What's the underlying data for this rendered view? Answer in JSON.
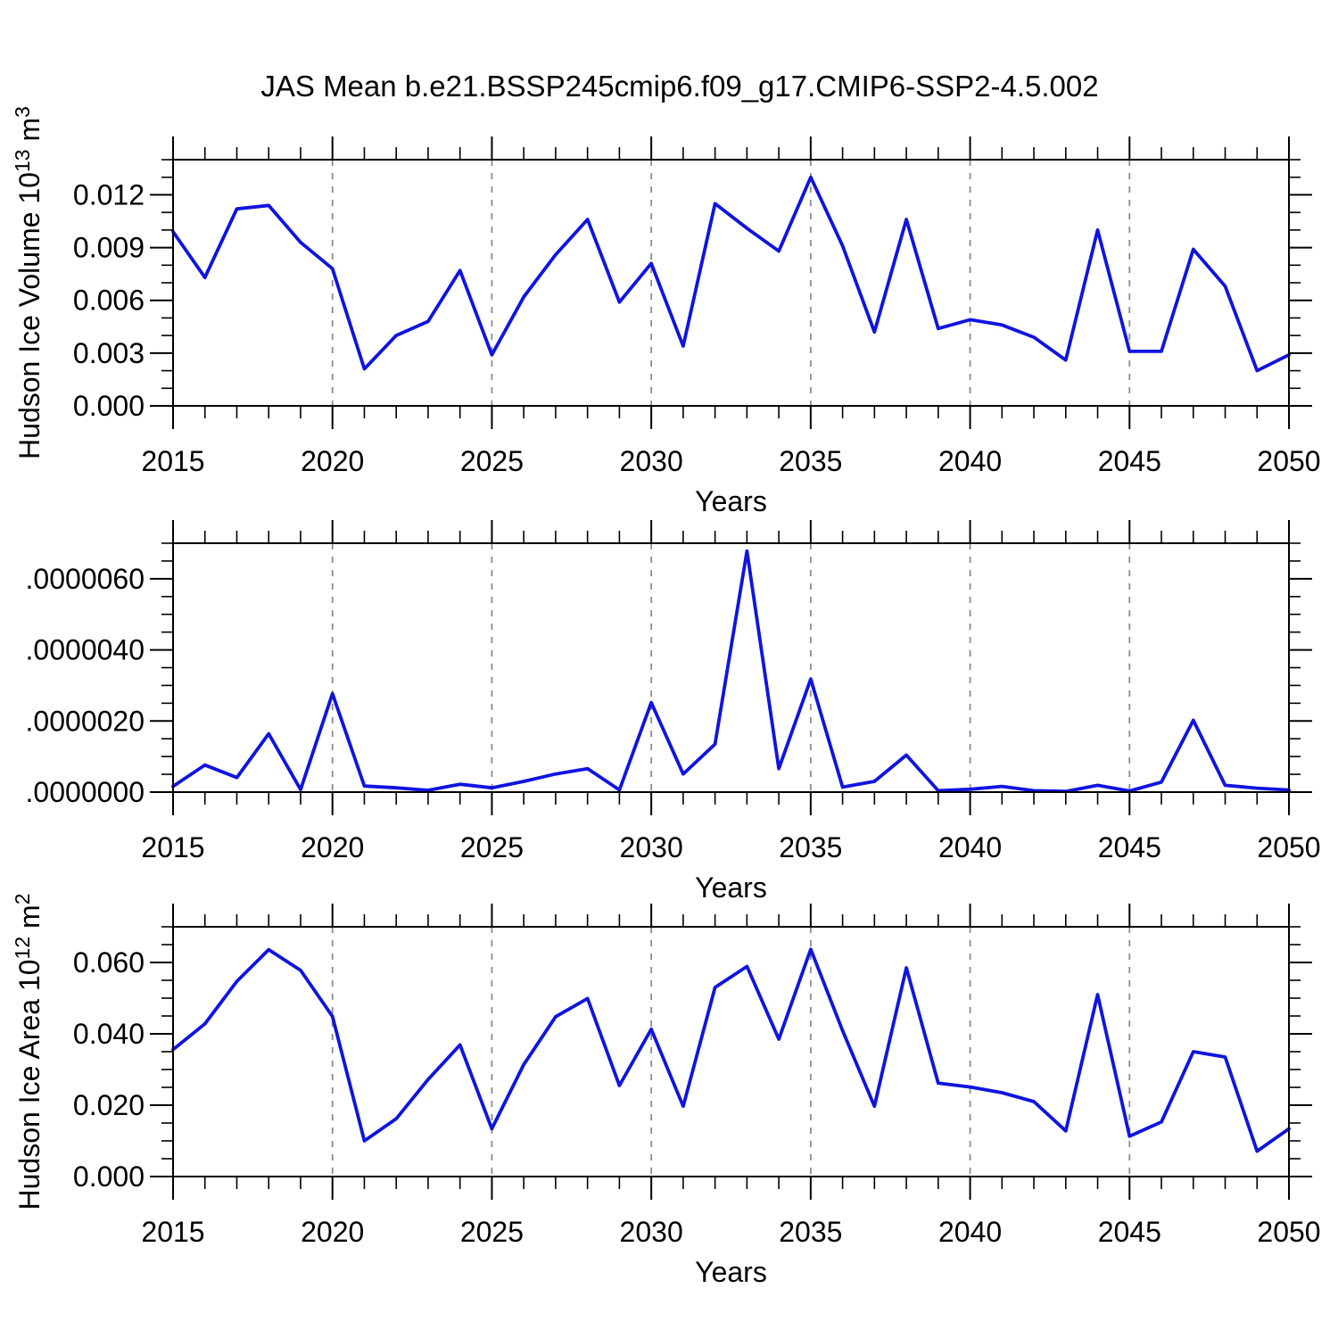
{
  "title": "JAS Mean b.e21.BSSP245cmip6.f09_g17.CMIP6-SSP2-4.5.002",
  "colors": {
    "line": "#0f14e0",
    "frame": "#000000",
    "grid": "#8c8c8c",
    "text": "#000000",
    "background": "#ffffff"
  },
  "years": [
    2015,
    2016,
    2017,
    2018,
    2019,
    2020,
    2021,
    2022,
    2023,
    2024,
    2025,
    2026,
    2027,
    2028,
    2029,
    2030,
    2031,
    2032,
    2033,
    2034,
    2035,
    2036,
    2037,
    2038,
    2039,
    2040,
    2041,
    2042,
    2043,
    2044,
    2045,
    2046,
    2047,
    2048,
    2049,
    2050
  ],
  "x_axis": {
    "range": [
      2015,
      2050
    ],
    "major_tick_years": [
      2015,
      2020,
      2025,
      2030,
      2035,
      2040,
      2045,
      2050
    ],
    "minor_step": 1,
    "gridline_years": [
      2020,
      2025,
      2030,
      2035,
      2040,
      2045
    ],
    "label": "Years"
  },
  "chart_data": [
    {
      "type": "line",
      "panel": "hudson-ice-volume",
      "ylabel": "Hudson Ice Volume 10^13 m^3",
      "ylabel_parts": [
        {
          "text": "Hudson Ice Volume 10"
        },
        {
          "text": "13",
          "sup": true
        },
        {
          "text": " m"
        },
        {
          "text": "3",
          "sup": true
        }
      ],
      "xlabel": "Years",
      "ylim": [
        0,
        0.014
      ],
      "y_major_ticks": [
        {
          "value": 0.0,
          "label": "0.000"
        },
        {
          "value": 0.003,
          "label": "0.003"
        },
        {
          "value": 0.006,
          "label": "0.006"
        },
        {
          "value": 0.009,
          "label": "0.009"
        },
        {
          "value": 0.012,
          "label": "0.012"
        }
      ],
      "y_minor_step": 0.001,
      "values": [
        0.0099,
        0.0073,
        0.0112,
        0.0114,
        0.0093,
        0.0078,
        0.0021,
        0.004,
        0.0048,
        0.0077,
        0.0029,
        0.0062,
        0.0086,
        0.0106,
        0.0059,
        0.0081,
        0.0034,
        0.0115,
        0.0101,
        0.0088,
        0.013,
        0.0091,
        0.0042,
        0.0106,
        0.0044,
        0.0049,
        0.0046,
        0.0039,
        0.0026,
        0.01,
        0.0031,
        0.0031,
        0.0089,
        0.0068,
        0.002,
        0.0029
      ]
    },
    {
      "type": "line",
      "panel": "hudson-ice-middle",
      "ylabel": "",
      "ylabel_parts": [],
      "xlabel": "Years",
      "ylim": [
        0,
        7e-06
      ],
      "y_major_ticks": [
        {
          "value": 0.0,
          "label": ".0000000"
        },
        {
          "value": 2e-06,
          "label": ".0000020"
        },
        {
          "value": 4e-06,
          "label": ".0000040"
        },
        {
          "value": 6e-06,
          "label": ".0000060"
        }
      ],
      "y_minor_step": 5e-07,
      "values": [
        1.6e-07,
        7.6e-07,
        4.1e-07,
        1.64e-06,
        7e-08,
        2.77e-06,
        1.7e-07,
        1.2e-07,
        5e-08,
        2.2e-07,
        1.2e-07,
        3e-07,
        5.1e-07,
        6.6e-07,
        6e-08,
        2.52e-06,
        5.1e-07,
        1.35e-06,
        6.78e-06,
        6.6e-07,
        3.18e-06,
        1.4e-07,
        3e-07,
        1.04e-06,
        4e-08,
        8e-08,
        1.6e-07,
        4e-08,
        2e-08,
        1.9e-07,
        3e-08,
        2.8e-07,
        2.02e-06,
        1.9e-07,
        1.1e-07,
        6e-08
      ]
    },
    {
      "type": "line",
      "panel": "hudson-ice-area",
      "ylabel": "Hudson Ice Area 10^12 m^2",
      "ylabel_parts": [
        {
          "text": "Hudson Ice Area 10"
        },
        {
          "text": "12",
          "sup": true
        },
        {
          "text": " m"
        },
        {
          "text": "2",
          "sup": true
        }
      ],
      "xlabel": "Years",
      "ylim": [
        0,
        0.07
      ],
      "y_major_ticks": [
        {
          "value": 0.0,
          "label": "0.000"
        },
        {
          "value": 0.02,
          "label": "0.020"
        },
        {
          "value": 0.04,
          "label": "0.040"
        },
        {
          "value": 0.06,
          "label": "0.060"
        }
      ],
      "y_minor_step": 0.005,
      "values": [
        0.0356,
        0.0428,
        0.0547,
        0.0636,
        0.0578,
        0.0449,
        0.01,
        0.0162,
        0.0272,
        0.0369,
        0.0134,
        0.0314,
        0.0448,
        0.0499,
        0.0255,
        0.0413,
        0.0197,
        0.053,
        0.0589,
        0.0385,
        0.0637,
        0.0409,
        0.0197,
        0.0585,
        0.0262,
        0.0251,
        0.0235,
        0.021,
        0.0128,
        0.051,
        0.0113,
        0.0153,
        0.035,
        0.0335,
        0.0071,
        0.0134
      ]
    }
  ]
}
